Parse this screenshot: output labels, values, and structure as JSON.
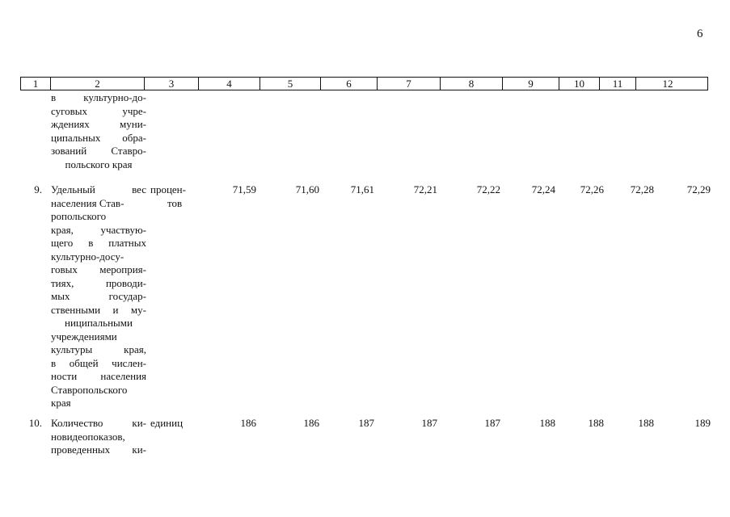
{
  "page_number": "6",
  "header_cells": [
    "1",
    "2",
    "3",
    "4",
    "5",
    "6",
    "7",
    "8",
    "9",
    "10",
    "11",
    "12"
  ],
  "continuation": {
    "name_lines": [
      "в культурно-до-",
      "суговых учре-",
      "ждениях муни-",
      "ципальных обра-",
      "зований Ставро-",
      "польского края"
    ]
  },
  "rows": [
    {
      "num": "9.",
      "name_lines": [
        "Удельный вес",
        "населения Став-",
        "ропольского",
        "края, участвую-",
        "щего в платных",
        "культурно-досу-",
        "говых мероприя-",
        "тиях, проводи-",
        "мых государ-",
        "ственными и му-",
        "ниципальными",
        "учреждениями",
        "культуры края,",
        "в общей числен-",
        "ности населения",
        "Ставропольского",
        "края"
      ],
      "unit_lines": [
        "процен-",
        "тов"
      ],
      "values": [
        "71,59",
        "71,60",
        "71,61",
        "72,21",
        "72,22",
        "72,24",
        "72,26",
        "72,28",
        "72,29"
      ]
    },
    {
      "num": "10.",
      "name_lines": [
        "Количество ки-",
        "новидеопоказов,",
        "проведенных ки-"
      ],
      "unit_lines": [
        "единиц"
      ],
      "values": [
        "186",
        "186",
        "187",
        "187",
        "187",
        "188",
        "188",
        "188",
        "189"
      ]
    }
  ]
}
